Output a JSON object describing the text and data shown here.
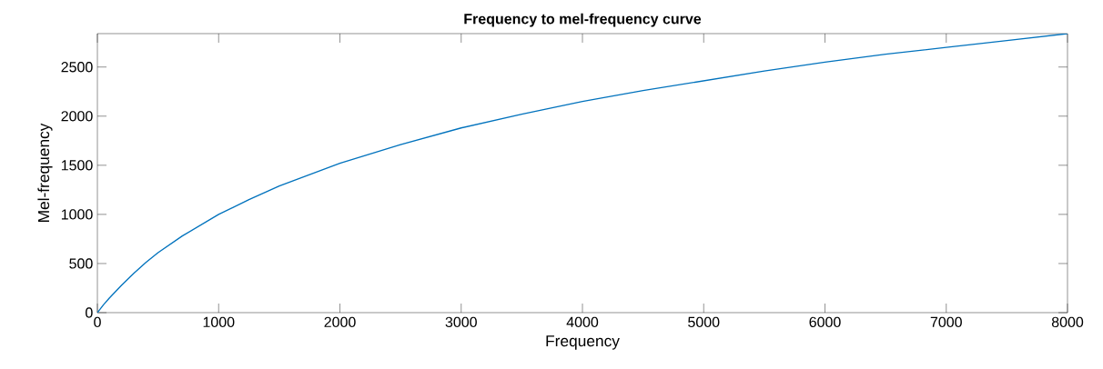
{
  "chart_data": {
    "type": "line",
    "title": "Frequency to mel-frequency curve",
    "xlabel": "Frequency",
    "ylabel": "Mel-frequency",
    "x": [
      0,
      50,
      100,
      200,
      300,
      400,
      500,
      700,
      1000,
      1250,
      1500,
      2000,
      2500,
      3000,
      3500,
      4000,
      4500,
      5000,
      5500,
      6000,
      6500,
      7000,
      7500,
      8000
    ],
    "series": [
      {
        "color": "#0072bd",
        "values": [
          0,
          80,
          150,
          280,
          400,
          510,
          610,
          780,
          1000,
          1150,
          1290,
          1520,
          1710,
          1880,
          2020,
          2150,
          2260,
          2360,
          2460,
          2550,
          2630,
          2700,
          2770,
          2840
        ]
      }
    ],
    "xlim": [
      0,
      8000
    ],
    "ylim": [
      0,
      2840
    ],
    "xticks": [
      0,
      1000,
      2000,
      3000,
      4000,
      5000,
      6000,
      7000,
      8000
    ],
    "yticks": [
      0,
      500,
      1000,
      1500,
      2000,
      2500
    ],
    "marker": "none",
    "line_style": "solid"
  }
}
